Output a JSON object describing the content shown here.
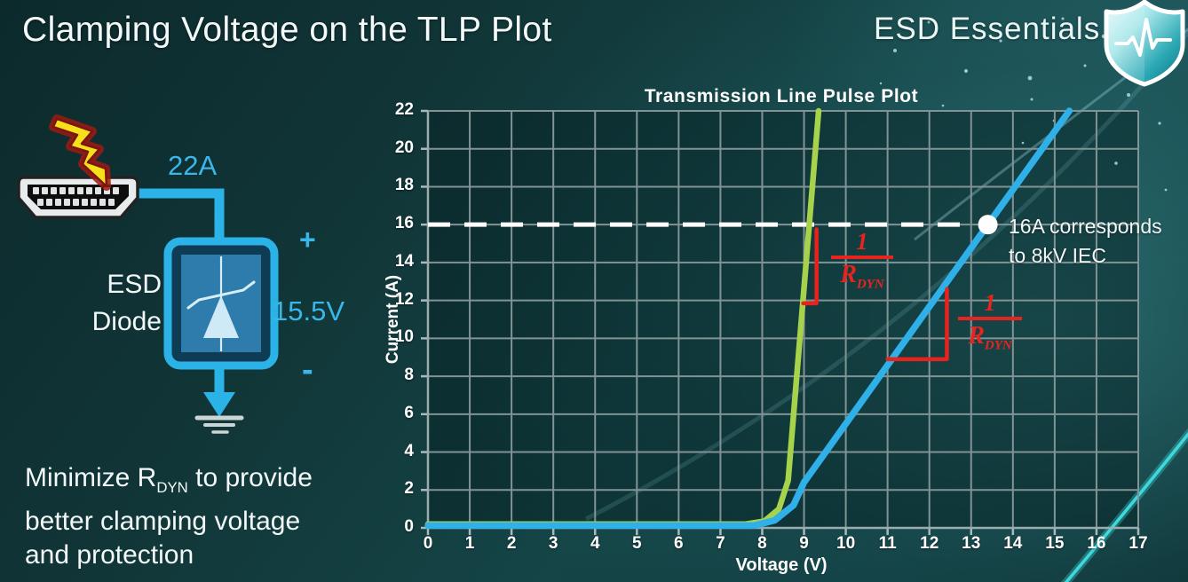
{
  "slide": {
    "title": "Clamping Voltage on the TLP Plot",
    "brand": "ESD Essentials"
  },
  "footer": {
    "line1_pre": "Minimize R",
    "line1_sub": "DYN",
    "line1_post": " to provide",
    "line2": "better clamping voltage",
    "line3": "and protection"
  },
  "diagram": {
    "surge_current_label": "22A",
    "device_line1": "ESD",
    "device_line2": "Diode",
    "plus_label": "+",
    "clamp_voltage_label": "15.5V",
    "minus_label": "-",
    "icons": [
      "lightning-bolt-icon",
      "hdmi-connector-icon",
      "esd-diode-symbol",
      "ground-icon"
    ],
    "wire_color": "#2bb3e7"
  },
  "chart_data": {
    "type": "line",
    "title": "Transmission Line Pulse Plot",
    "xlabel": "Voltage (V)",
    "ylabel": "Current (A)",
    "xlim": [
      0,
      17
    ],
    "ylim": [
      0,
      22
    ],
    "xticks": [
      0,
      1,
      2,
      3,
      4,
      5,
      6,
      7,
      8,
      9,
      10,
      11,
      12,
      13,
      14,
      15,
      16,
      17
    ],
    "yticks": [
      0,
      2,
      4,
      6,
      8,
      10,
      12,
      14,
      16,
      18,
      20,
      22
    ],
    "grid": true,
    "legend": "none",
    "series": [
      {
        "name": "low-rdyn-diode-green",
        "color": "#a6d24c",
        "width": 6.5,
        "points": [
          [
            0,
            0.2
          ],
          [
            7.6,
            0.2
          ],
          [
            8.05,
            0.35
          ],
          [
            8.4,
            1.0
          ],
          [
            8.62,
            2.5
          ],
          [
            9.35,
            22
          ]
        ]
      },
      {
        "name": "high-rdyn-diode-blue",
        "color": "#2fb0e8",
        "width": 7.5,
        "points": [
          [
            0,
            0.12
          ],
          [
            7.8,
            0.12
          ],
          [
            8.3,
            0.4
          ],
          [
            8.75,
            1.2
          ],
          [
            9.0,
            2.4
          ],
          [
            13.4,
            16
          ],
          [
            15.35,
            22
          ]
        ]
      }
    ],
    "threshold": {
      "value": 16,
      "style": "dashed",
      "color": "#ffffff",
      "marker_xy": [
        13.4,
        16
      ],
      "label_line1": "16A corresponds",
      "label_line2": "to 8kV IEC"
    },
    "slope_marks": [
      {
        "series": "low-rdyn-diode-green",
        "color": "#e8221c",
        "polyline": [
          [
            8.98,
            11.85
          ],
          [
            9.3,
            11.85
          ],
          [
            9.3,
            15.75
          ]
        ],
        "label_num": "1",
        "label_den": "R",
        "label_den_sub": "DYN"
      },
      {
        "series": "high-rdyn-diode-blue",
        "color": "#e8221c",
        "polyline": [
          [
            11.0,
            8.9
          ],
          [
            12.42,
            8.9
          ],
          [
            12.42,
            12.6
          ]
        ],
        "label_num": "1",
        "label_den": "R",
        "label_den_sub": "DYN"
      }
    ]
  }
}
